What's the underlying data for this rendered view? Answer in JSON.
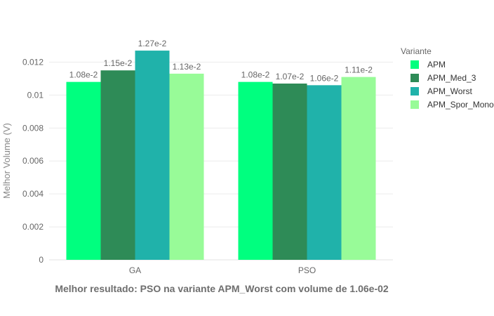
{
  "chart_data": {
    "type": "bar",
    "categories": [
      "GA",
      "PSO"
    ],
    "series": [
      {
        "name": "APM",
        "values": [
          0.0108,
          0.0108
        ],
        "labels": [
          "1.08e-2",
          "1.08e-2"
        ],
        "color": "#00ff7f"
      },
      {
        "name": "APM_Med_3",
        "values": [
          0.0115,
          0.0107
        ],
        "labels": [
          "1.15e-2",
          "1.07e-2"
        ],
        "color": "#2e8b57"
      },
      {
        "name": "APM_Worst",
        "values": [
          0.0127,
          0.0106
        ],
        "labels": [
          "1.27e-2",
          "1.06e-2"
        ],
        "color": "#20b2aa"
      },
      {
        "name": "APM_Spor_Mono",
        "values": [
          0.0113,
          0.0111
        ],
        "labels": [
          "1.13e-2",
          "1.11e-2"
        ],
        "color": "#98fb98"
      }
    ],
    "title": "",
    "xlabel": "Melhor resultado: PSO na variante APM_Worst com volume de 1.06e-02",
    "ylabel": "Melhor Volume (V)",
    "ylim": [
      0,
      0.0133
    ],
    "yticks": [
      0,
      0.002,
      0.004,
      0.006,
      0.008,
      0.01,
      0.012
    ],
    "ytick_labels": [
      "0",
      "0.002",
      "0.004",
      "0.006",
      "0.008",
      "0.01",
      "0.012"
    ],
    "grid": true,
    "legend_title": "Variante",
    "legend_position": "right"
  }
}
